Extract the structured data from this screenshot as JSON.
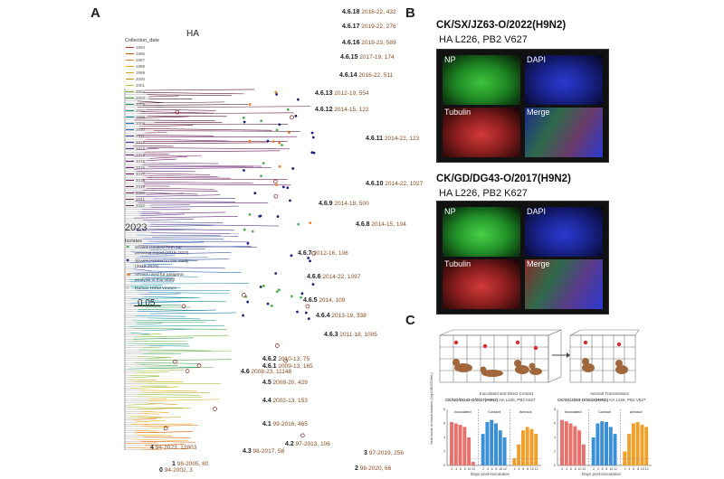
{
  "panels": {
    "a": "A",
    "b": "B",
    "c": "C"
  },
  "tree": {
    "title": "HA",
    "legend_title": "Collection_date",
    "years": [
      {
        "label": "1994",
        "color": "#c0392b"
      },
      {
        "label": "1996",
        "color": "#d35400"
      },
      {
        "label": "1997",
        "color": "#e67e22"
      },
      {
        "label": "1998",
        "color": "#f39c12"
      },
      {
        "label": "1999",
        "color": "#d4ac0d"
      },
      {
        "label": "2000",
        "color": "#b7950b"
      },
      {
        "label": "2001",
        "color": "#a9c23f"
      },
      {
        "label": "2002",
        "color": "#7dbb3a"
      },
      {
        "label": "2003",
        "color": "#52a447"
      },
      {
        "label": "2005",
        "color": "#2e9a5e"
      },
      {
        "label": "2007",
        "color": "#1f9c8a"
      },
      {
        "label": "2008",
        "color": "#178fa8"
      },
      {
        "label": "2009",
        "color": "#1a7fb8"
      },
      {
        "label": "2010",
        "color": "#2b6cb5"
      },
      {
        "label": "2011",
        "color": "#3a5aa8"
      },
      {
        "label": "2012",
        "color": "#4a4a9c"
      },
      {
        "label": "2013",
        "color": "#563d8f"
      },
      {
        "label": "2014",
        "color": "#5f3385"
      },
      {
        "label": "2015",
        "color": "#67297a"
      },
      {
        "label": "2016",
        "color": "#6c2270"
      },
      {
        "label": "2017",
        "color": "#6e1f63"
      },
      {
        "label": "2018",
        "color": "#6b1c55"
      },
      {
        "label": "2019",
        "color": "#661947"
      },
      {
        "label": "2020",
        "color": "#5e163a"
      },
      {
        "label": "2021",
        "color": "#55142f"
      },
      {
        "label": "2022",
        "color": "#4a1226"
      }
    ],
    "last_year": "2023",
    "isolates_title": "Isolates",
    "isolates": [
      {
        "label": "Strains isolated from our previous report (2018-2019)",
        "color": "#4caf50",
        "shape": "dot"
      },
      {
        "label": "Strains isolated in this study (2019-2023)",
        "color": "#1a237e",
        "shape": "dot"
      },
      {
        "label": "Strains used for antigenic analysis in this study",
        "color": "#e67e22",
        "shape": "star"
      },
      {
        "label": "Human H9N2 viruses",
        "color": "#8b1a1a",
        "shape": "ring"
      }
    ],
    "scale_bar": "0.05",
    "clades": [
      {
        "name": "4.6.18",
        "info": "2016-22, 432"
      },
      {
        "name": "4.6.17",
        "info": "2019-22, 276"
      },
      {
        "name": "4.6.16",
        "info": "2019-23, 589"
      },
      {
        "name": "4.6.15",
        "info": "2017-19, 174"
      },
      {
        "name": "4.6.14",
        "info": "2016-22, 511"
      },
      {
        "name": "4.6.13",
        "info": "2012-19, 554"
      },
      {
        "name": "4.6.12",
        "info": "2014-15, 122"
      },
      {
        "name": "4.6.11",
        "info": "2014-22, 123"
      },
      {
        "name": "4.6.10",
        "info": "2014-22, 1027"
      },
      {
        "name": "4.6.9",
        "info": "2014-18, 500"
      },
      {
        "name": "4.6.8",
        "info": "2014-15, 104"
      },
      {
        "name": "4.6.7",
        "info": "2012-16, 106"
      },
      {
        "name": "4.6.6",
        "info": "2014-22, 1097"
      },
      {
        "name": "4.6.5",
        "info": "2014, 109"
      },
      {
        "name": "4.6.4",
        "info": "2013-19, 338"
      },
      {
        "name": "4.6.3",
        "info": "2011-18, 1005"
      },
      {
        "name": "4.6.2",
        "info": "2010-13, 75"
      },
      {
        "name": "4.6.1",
        "info": "2009-13, 165"
      },
      {
        "name": "4.6",
        "info": "2008-23, 11148"
      },
      {
        "name": "4.5",
        "info": "2008-20, 429"
      },
      {
        "name": "4.4",
        "info": "2002-13, 153"
      },
      {
        "name": "4.1",
        "info": "99-2016, 465"
      },
      {
        "name": "4.2",
        "info": "97-2013, 106"
      },
      {
        "name": "4.3",
        "info": "98-2017, 58"
      },
      {
        "name": "4",
        "info": "94-2023, 12803"
      },
      {
        "name": "3",
        "info": "97-2019, 256"
      },
      {
        "name": "2",
        "info": "98-2020, 66"
      },
      {
        "name": "1",
        "info": "98-2005, 80"
      },
      {
        "name": "0",
        "info": "94-2002, 3"
      }
    ]
  },
  "panel_b": {
    "strain1": "CK/SX/JZ63-O/2022(H9N2)",
    "mut1": "HA L226, PB2 V627",
    "strain2": "CK/GD/DG43-O/2017(H9N2)",
    "mut2": "HA L226, PB2 K627",
    "quad_labels": [
      "NP",
      "DAPI",
      "Tubulin",
      "Merge"
    ]
  },
  "panel_c": {
    "label_inoculated": "Inoculated and Direct Contact",
    "label_aerosol": "Aerosol Transmission",
    "chart1_title": "CK/GD/DG43-O/2017(H9N2)",
    "chart1_sub": "HA L226, PB2 K627",
    "chart2_title": "CK/SX/JZ63-O/2022(H9N2)",
    "chart2_sub": "HA L226, PB2 V627",
    "group_labels": [
      "Inoculated",
      "Contact",
      "Aerosol"
    ],
    "ylabel": "Viral loads of nasal washes (log10EID50/mL)",
    "xlabel": "Days post-inoculation",
    "colors": {
      "inoculated": "#e8716b",
      "contact": "#3b8fd6",
      "aerosol": "#f0a02a"
    }
  },
  "chart_data": [
    {
      "type": "bar",
      "title": "CK/GD/DG43-O/2017(H9N2)",
      "xlabel": "Days post-inoculation",
      "ylabel": "Viral loads of nasal washes (log10EID50/mL)",
      "ylim": [
        0,
        8
      ],
      "categories": [
        "2",
        "4",
        "6",
        "8",
        "10",
        "12"
      ],
      "series": [
        {
          "name": "Inoculated",
          "values": [
            6.2,
            6.0,
            5.8,
            5.5,
            4.0,
            0.5
          ]
        },
        {
          "name": "Contact",
          "values": [
            4.5,
            6.2,
            6.5,
            6.0,
            5.0,
            4.0
          ]
        },
        {
          "name": "Aerosol",
          "values": [
            1.0,
            3.0,
            5.0,
            5.5,
            5.2,
            4.5
          ]
        }
      ]
    },
    {
      "type": "bar",
      "title": "CK/SX/JZ63-O/2022(H9N2)",
      "xlabel": "Days post-inoculation",
      "ylabel": "Viral loads of nasal washes (log10EID50/mL)",
      "ylim": [
        0,
        8
      ],
      "categories": [
        "2",
        "4",
        "6",
        "8",
        "10",
        "12"
      ],
      "series": [
        {
          "name": "Inoculated",
          "values": [
            6.5,
            6.3,
            6.0,
            5.6,
            5.0,
            3.0
          ]
        },
        {
          "name": "Contact",
          "values": [
            4.0,
            6.0,
            6.3,
            6.2,
            5.5,
            4.5
          ]
        },
        {
          "name": "Aerosol",
          "values": [
            2.0,
            4.5,
            6.0,
            6.2,
            5.8,
            5.5
          ]
        }
      ]
    }
  ]
}
